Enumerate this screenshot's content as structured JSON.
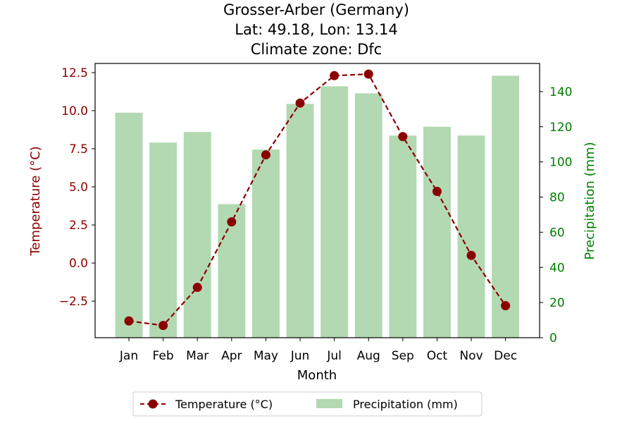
{
  "chart_data": {
    "type": "bar+line",
    "title_lines": [
      "Grosser-Arber (Germany)",
      "Lat: 49.18, Lon: 13.14",
      "Climate zone: Dfc"
    ],
    "xlabel": "Month",
    "categories": [
      "Jan",
      "Feb",
      "Mar",
      "Apr",
      "May",
      "Jun",
      "Jul",
      "Aug",
      "Sep",
      "Oct",
      "Nov",
      "Dec"
    ],
    "temperature": {
      "name": "Temperature (°C)",
      "axis_label": "Temperature (°C)",
      "color": "#8b0000",
      "values": [
        -3.8,
        -4.1,
        -1.6,
        2.7,
        7.1,
        10.5,
        12.3,
        12.4,
        8.3,
        4.7,
        0.5,
        -2.8
      ],
      "ylim": [
        -4.9,
        13.1
      ],
      "ticks": [
        -2.5,
        0.0,
        2.5,
        5.0,
        7.5,
        10.0,
        12.5
      ],
      "tick_labels": [
        "−2.5",
        "0.0",
        "2.5",
        "5.0",
        "7.5",
        "10.0",
        "12.5"
      ]
    },
    "precipitation": {
      "name": "Precipitation (mm)",
      "axis_label": "Precipitation (mm)",
      "color": "#b2d9b2",
      "tick_color": "#008000",
      "values": [
        128,
        111,
        117,
        76,
        107,
        133,
        143,
        139,
        115,
        120,
        115,
        149
      ],
      "ylim": [
        0,
        156
      ],
      "ticks": [
        0,
        20,
        40,
        60,
        80,
        100,
        120,
        140
      ],
      "tick_labels": [
        "0",
        "20",
        "40",
        "60",
        "80",
        "100",
        "120",
        "140"
      ]
    },
    "legend": {
      "placement": "below",
      "entries": [
        "Temperature (°C)",
        "Precipitation (mm)"
      ]
    },
    "grid": false
  }
}
